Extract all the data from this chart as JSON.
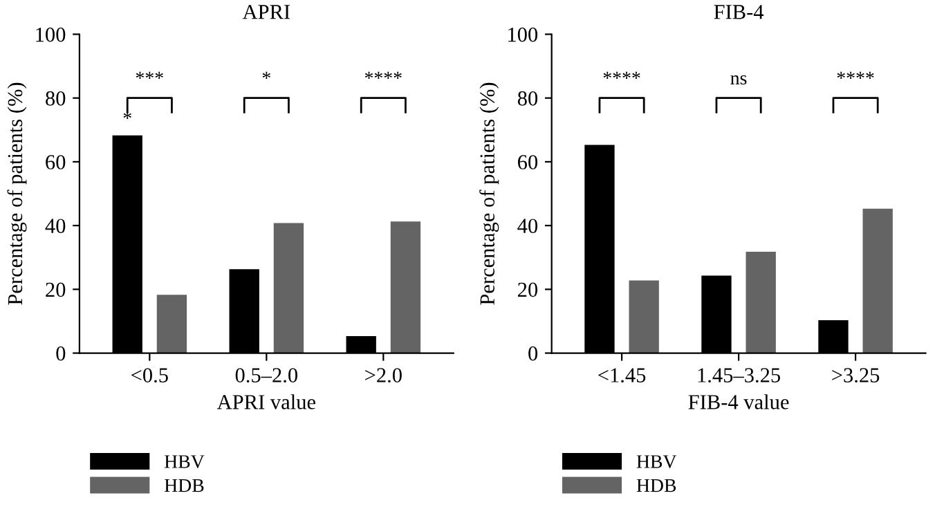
{
  "chart_data": [
    {
      "type": "bar",
      "title": "APRI",
      "xlabel": "APRI value",
      "ylabel": "Percentage of patients (%)",
      "categories": [
        "<0.5",
        "0.5–2.0",
        ">2.0"
      ],
      "series": [
        {
          "name": "HBV",
          "color": "#000000",
          "values": [
            68,
            26,
            5
          ]
        },
        {
          "name": "HDB",
          "color": "#646464",
          "values": [
            18,
            40.5,
            41
          ]
        }
      ],
      "ylim": [
        0,
        100
      ],
      "yticks": [
        0,
        20,
        40,
        60,
        80,
        100
      ],
      "grid": false,
      "legend": "bottom",
      "annotations": [
        "***",
        "*",
        "****",
        "*"
      ]
    },
    {
      "type": "bar",
      "title": "FIB-4",
      "xlabel": "FIB-4 value",
      "ylabel": "Percentage of patients (%)",
      "categories": [
        "<1.45",
        "1.45–3.25",
        ">3.25"
      ],
      "series": [
        {
          "name": "HBV",
          "color": "#000000",
          "values": [
            65,
            24,
            10
          ]
        },
        {
          "name": "HDB",
          "color": "#646464",
          "values": [
            22.5,
            31.5,
            45
          ]
        }
      ],
      "ylim": [
        0,
        100
      ],
      "yticks": [
        0,
        20,
        40,
        60,
        80,
        100
      ],
      "grid": false,
      "legend": "bottom",
      "annotations": [
        "****",
        "ns",
        "****"
      ]
    }
  ]
}
